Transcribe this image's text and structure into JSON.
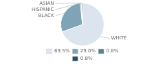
{
  "chart_data": {
    "type": "pie",
    "categories": [
      "WHITE",
      "BLACK",
      "HISPANIC",
      "ASIAN"
    ],
    "values": [
      69.5,
      29.0,
      0.8,
      0.8
    ],
    "value_labels": [
      "69.5%",
      "29.0%",
      "0.8%",
      "0.8%"
    ],
    "colors": [
      "#dce5ef",
      "#7fa4b8",
      "#5a7f96",
      "#2c5166"
    ],
    "legend": "bottom"
  }
}
